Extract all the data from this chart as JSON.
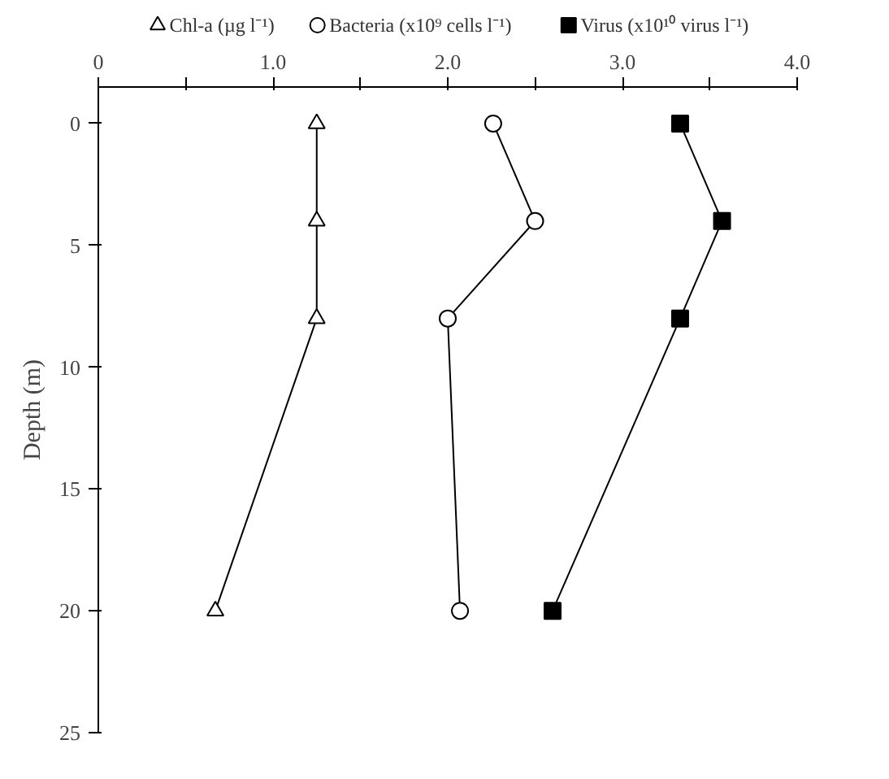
{
  "chart_data": {
    "type": "line",
    "ylabel": "Depth (m)",
    "series": [
      {
        "name": "Chl-a (µg l⁻¹)",
        "color": "#000000",
        "marker": "triangle",
        "x": [
          1.25,
          1.25,
          1.25,
          0.67
        ],
        "values": [
          0,
          4,
          8,
          20
        ]
      },
      {
        "name": "Bacteria (x10⁹ cells l⁻¹)",
        "color": "#000000",
        "marker": "circle",
        "x": [
          2.26,
          2.5,
          2.0,
          2.07
        ],
        "values": [
          0,
          4,
          8,
          20
        ]
      },
      {
        "name": "Virus (x10¹⁰ virus l⁻¹)",
        "color": "#000000",
        "marker": "square",
        "x": [
          3.33,
          3.57,
          3.33,
          2.6
        ],
        "values": [
          0,
          4,
          8,
          20
        ]
      }
    ],
    "xlim": [
      0,
      4.0
    ],
    "xticks": [
      0,
      {
        "value": 0.5,
        "label": null
      },
      {
        "value": 1.0,
        "label": "1.0"
      },
      {
        "value": 1.5,
        "label": null
      },
      {
        "value": 2.0,
        "label": "2.0"
      },
      {
        "value": 2.5,
        "label": null
      },
      {
        "value": 3.0,
        "label": "3.0"
      },
      {
        "value": 3.5,
        "label": null
      },
      {
        "value": 4.0,
        "label": "4.0"
      }
    ],
    "ylim": [
      25,
      -1.5
    ],
    "yticks": [
      0,
      5,
      10,
      15,
      20,
      25
    ],
    "legend": "top",
    "grid": false,
    "line_style": "solid"
  }
}
